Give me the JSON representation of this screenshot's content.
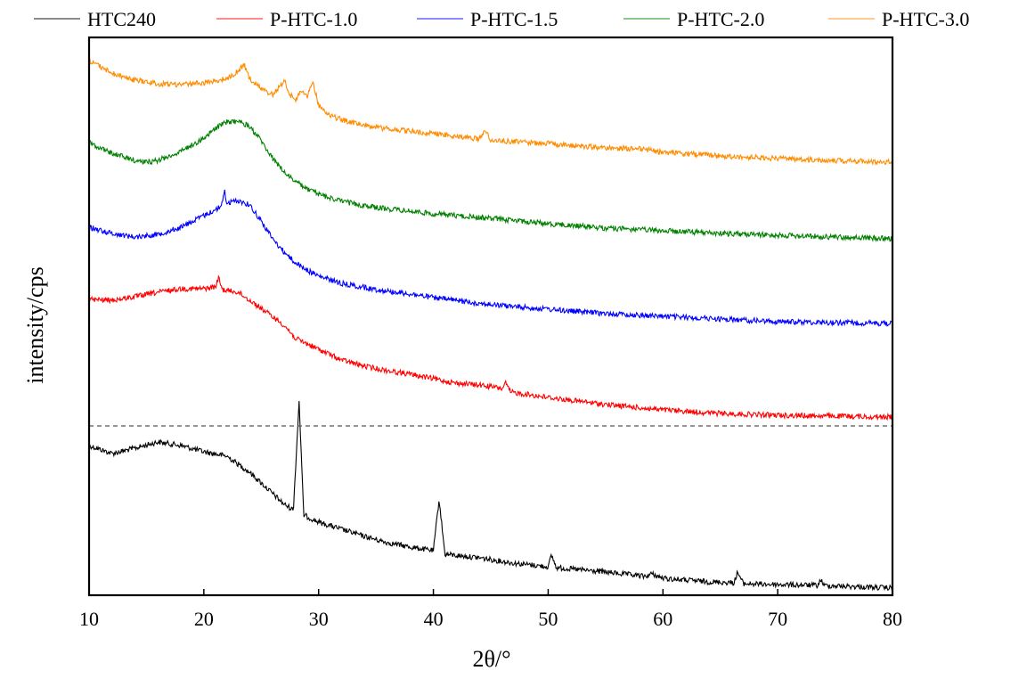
{
  "chart_data": {
    "type": "line",
    "xlabel": "2θ/°",
    "ylabel": "intensity/cps",
    "xlim": [
      10,
      80
    ],
    "xticks": [
      "10",
      "20",
      "30",
      "40",
      "50",
      "60",
      "70",
      "80"
    ],
    "y_ticks_shown": false,
    "grid": false,
    "legend_position": "top",
    "separator": "dashed horizontal line between HTC240 and stacked P-HTC patterns",
    "series": [
      {
        "name": "HTC240",
        "color": "#000000",
        "points": [
          [
            10,
            500
          ],
          [
            12,
            509
          ],
          [
            14,
            503
          ],
          [
            16,
            496
          ],
          [
            18,
            500
          ],
          [
            20,
            507
          ],
          [
            22,
            512
          ],
          [
            24,
            530
          ],
          [
            26,
            554
          ],
          [
            27,
            566
          ],
          [
            27.8,
            572
          ],
          [
            28.3,
            450
          ],
          [
            28.7,
            578
          ],
          [
            30,
            586
          ],
          [
            32,
            594
          ],
          [
            34,
            602
          ],
          [
            36,
            609
          ],
          [
            38,
            614
          ],
          [
            40,
            618
          ],
          [
            40.5,
            560
          ],
          [
            41,
            622
          ],
          [
            44,
            626
          ],
          [
            47,
            632
          ],
          [
            50,
            636
          ],
          [
            50.3,
            623
          ],
          [
            50.7,
            637
          ],
          [
            55,
            642
          ],
          [
            58.5,
            647
          ],
          [
            59,
            644
          ],
          [
            60,
            649
          ],
          [
            64,
            653
          ],
          [
            66.2,
            654
          ],
          [
            66.5,
            642
          ],
          [
            67,
            655
          ],
          [
            70,
            656
          ],
          [
            73.5,
            657
          ],
          [
            73.8,
            650
          ],
          [
            74,
            657
          ],
          [
            78,
            659
          ],
          [
            80,
            660
          ]
        ],
        "peaks": [
          28.3,
          40.5,
          50.3,
          58.7,
          66.4,
          73.7
        ]
      },
      {
        "name": "P-HTC-1.0",
        "color": "#ff0000",
        "points": [
          [
            10,
            336
          ],
          [
            12,
            337
          ],
          [
            14,
            333
          ],
          [
            16,
            328
          ],
          [
            18,
            324
          ],
          [
            20,
            324
          ],
          [
            21,
            322
          ],
          [
            21.3,
            312
          ],
          [
            21.6,
            325
          ],
          [
            23,
            328
          ],
          [
            25,
            346
          ],
          [
            27,
            365
          ],
          [
            28,
            380
          ],
          [
            30,
            392
          ],
          [
            32,
            404
          ],
          [
            34,
            411
          ],
          [
            36,
            416
          ],
          [
            38,
            420
          ],
          [
            40,
            425
          ],
          [
            42,
            430
          ],
          [
            44,
            432
          ],
          [
            46,
            436
          ],
          [
            46.3,
            430
          ],
          [
            46.7,
            440
          ],
          [
            50,
            446
          ],
          [
            55,
            454
          ],
          [
            60,
            460
          ],
          [
            65,
            464
          ],
          [
            70,
            466
          ],
          [
            75,
            467
          ],
          [
            80,
            468
          ]
        ]
      },
      {
        "name": "P-HTC-1.5",
        "color": "#0000ff",
        "points": [
          [
            10,
            255
          ],
          [
            12,
            262
          ],
          [
            14,
            266
          ],
          [
            16,
            263
          ],
          [
            18,
            255
          ],
          [
            20,
            242
          ],
          [
            21.5,
            232
          ],
          [
            21.8,
            214
          ],
          [
            22,
            228
          ],
          [
            23,
            225
          ],
          [
            24,
            230
          ],
          [
            25,
            248
          ],
          [
            26,
            268
          ],
          [
            27,
            283
          ],
          [
            28,
            295
          ],
          [
            29,
            303
          ],
          [
            30,
            310
          ],
          [
            32,
            318
          ],
          [
            35,
            325
          ],
          [
            38,
            330
          ],
          [
            40,
            334
          ],
          [
            45,
            342
          ],
          [
            50,
            347
          ],
          [
            55,
            352
          ],
          [
            60,
            355
          ],
          [
            65,
            358
          ],
          [
            70,
            361
          ],
          [
            75,
            362
          ],
          [
            80,
            363
          ]
        ]
      },
      {
        "name": "P-HTC-2.0",
        "color": "#008000",
        "points": [
          [
            10,
            160
          ],
          [
            12,
            172
          ],
          [
            14,
            180
          ],
          [
            15,
            182
          ],
          [
            16,
            180
          ],
          [
            18,
            170
          ],
          [
            20,
            155
          ],
          [
            21,
            144
          ],
          [
            22,
            137
          ],
          [
            23,
            136
          ],
          [
            24,
            142
          ],
          [
            25,
            158
          ],
          [
            26,
            178
          ],
          [
            27,
            193
          ],
          [
            28,
            204
          ],
          [
            29,
            212
          ],
          [
            30,
            218
          ],
          [
            32,
            226
          ],
          [
            35,
            233
          ],
          [
            38,
            237
          ],
          [
            40,
            240
          ],
          [
            45,
            245
          ],
          [
            50,
            251
          ],
          [
            55,
            256
          ],
          [
            60,
            259
          ],
          [
            65,
            262
          ],
          [
            70,
            264
          ],
          [
            75,
            266
          ],
          [
            80,
            268
          ]
        ]
      },
      {
        "name": "P-HTC-3.0",
        "color": "#ff8c00",
        "points": [
          [
            10,
            68
          ],
          [
            12,
            82
          ],
          [
            14,
            90
          ],
          [
            16,
            94
          ],
          [
            18,
            95
          ],
          [
            20,
            93
          ],
          [
            22,
            88
          ],
          [
            23,
            80
          ],
          [
            23.5,
            72
          ],
          [
            24,
            88
          ],
          [
            25,
            100
          ],
          [
            26,
            106
          ],
          [
            26.8,
            95
          ],
          [
            27,
            88
          ],
          [
            27.3,
            104
          ],
          [
            28,
            112
          ],
          [
            28.5,
            102
          ],
          [
            29,
            108
          ],
          [
            29.5,
            92
          ],
          [
            30,
            118
          ],
          [
            31,
            130
          ],
          [
            33,
            138
          ],
          [
            35,
            143
          ],
          [
            37,
            146
          ],
          [
            40,
            150
          ],
          [
            42,
            153
          ],
          [
            44,
            156
          ],
          [
            44.5,
            146
          ],
          [
            45,
            157
          ],
          [
            48,
            160
          ],
          [
            50,
            161
          ],
          [
            55,
            166
          ],
          [
            58,
            167
          ],
          [
            60,
            171
          ],
          [
            65,
            175
          ],
          [
            70,
            178
          ],
          [
            75,
            180
          ],
          [
            80,
            182
          ]
        ]
      }
    ]
  }
}
